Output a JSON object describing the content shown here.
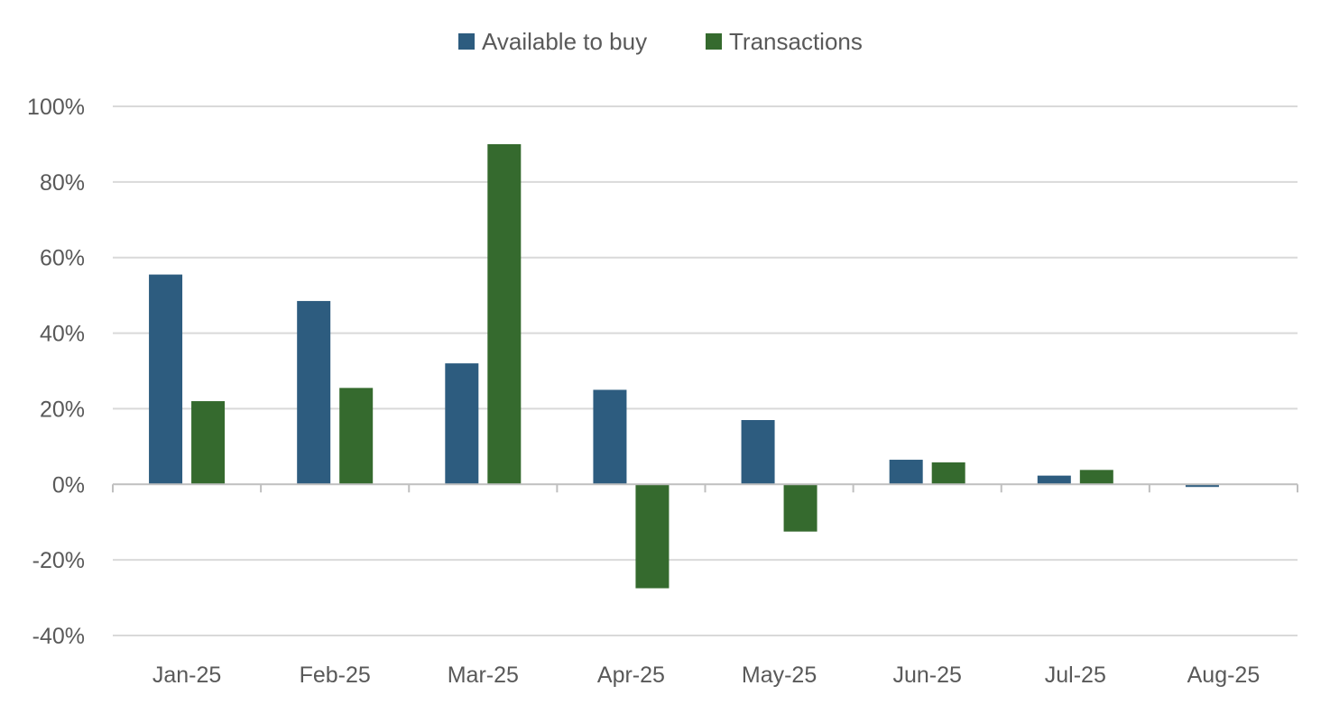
{
  "chart_data": {
    "type": "bar",
    "title": "",
    "xlabel": "",
    "ylabel": "",
    "categories": [
      "Jan-25",
      "Feb-25",
      "Mar-25",
      "Apr-25",
      "May-25",
      "Jun-25",
      "Jul-25",
      "Aug-25"
    ],
    "series": [
      {
        "name": "Available to buy",
        "color": "#2d5c7f",
        "values": [
          55.5,
          48.5,
          32,
          25,
          17,
          6.5,
          2.3,
          -0.7
        ]
      },
      {
        "name": "Transactions",
        "color": "#356a2e",
        "values": [
          22,
          25.5,
          90,
          -27.5,
          -12.5,
          5.8,
          3.8,
          null
        ]
      }
    ],
    "ylim": [
      -40,
      100
    ],
    "yticks": [
      100,
      80,
      60,
      40,
      20,
      0,
      -20,
      -40
    ],
    "ytick_format": "percent",
    "grid": true,
    "legend_position": "top-center"
  }
}
